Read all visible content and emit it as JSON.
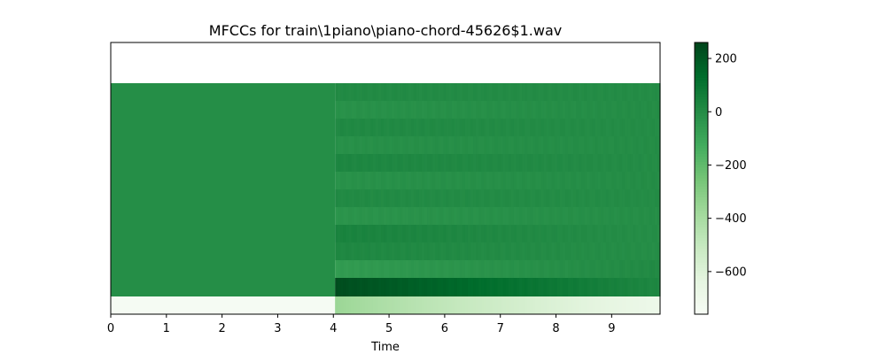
{
  "chart_data": {
    "type": "heatmap",
    "title": "MFCCs for train\\1piano\\piano-chord-45626$1.wav",
    "xlabel": "Time",
    "ylabel": "",
    "xlim": [
      0,
      9.87
    ],
    "x_ticks": [
      "0",
      "1",
      "2",
      "3",
      "4",
      "5",
      "6",
      "7",
      "8",
      "9"
    ],
    "y_ticks": [],
    "colormap": "Greens",
    "colormap_stops": [
      "#f7fcf5",
      "#e5f5e0",
      "#c7e9c0",
      "#a1d99b",
      "#74c476",
      "#41ab5d",
      "#238b45",
      "#006d2c",
      "#00441b"
    ],
    "colorbar": {
      "vmin": -760,
      "vmax": 260,
      "ticks": [
        "200",
        "0",
        "−200",
        "−400",
        "−600"
      ],
      "tick_values": [
        200,
        0,
        -200,
        -400,
        -600
      ]
    },
    "onset_time": 4.03,
    "n_coefficients": 13,
    "coefficient_rows": [
      {
        "coef": 0,
        "silence": -745,
        "onset": -360,
        "end": -690
      },
      {
        "coef": 1,
        "silence": -5,
        "onset": 235,
        "end": 20
      },
      {
        "coef": 2,
        "silence": -5,
        "onset": -60,
        "end": 10
      },
      {
        "coef": 3,
        "silence": -5,
        "onset": 20,
        "end": -5
      },
      {
        "coef": 4,
        "silence": -5,
        "onset": 40,
        "end": -5
      },
      {
        "coef": 5,
        "silence": -5,
        "onset": -30,
        "end": -5
      },
      {
        "coef": 6,
        "silence": -5,
        "onset": 10,
        "end": 0
      },
      {
        "coef": 7,
        "silence": -5,
        "onset": -20,
        "end": 0
      },
      {
        "coef": 8,
        "silence": -5,
        "onset": 25,
        "end": 0
      },
      {
        "coef": 9,
        "silence": -5,
        "onset": -15,
        "end": 0
      },
      {
        "coef": 10,
        "silence": -5,
        "onset": 15,
        "end": 0
      },
      {
        "coef": 11,
        "silence": -5,
        "onset": -20,
        "end": 0
      },
      {
        "coef": 12,
        "silence": -5,
        "onset": 10,
        "end": 0
      }
    ]
  }
}
